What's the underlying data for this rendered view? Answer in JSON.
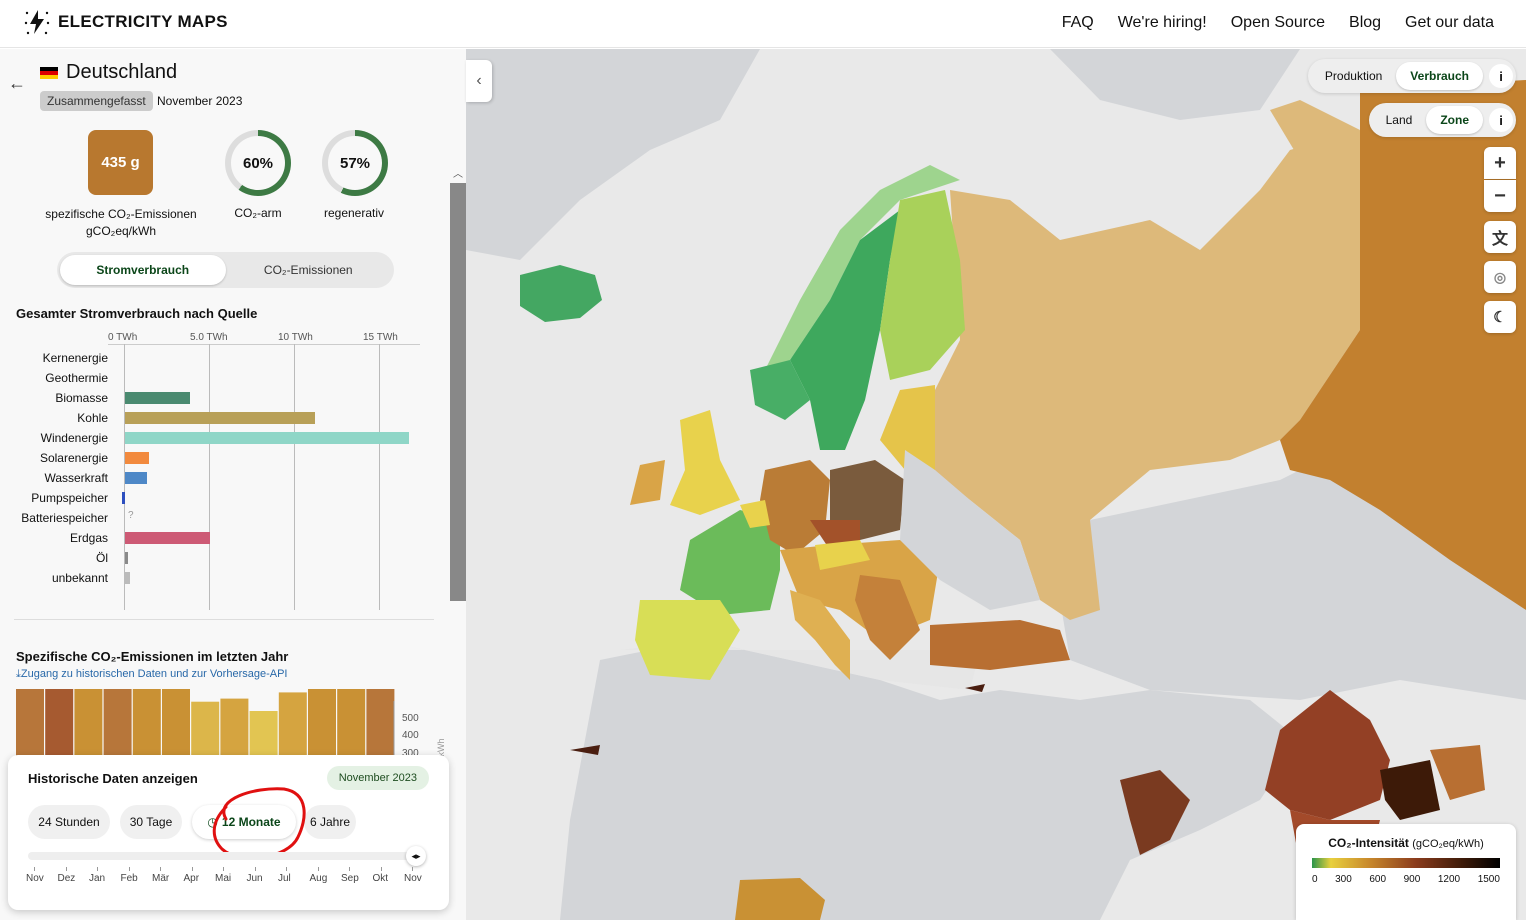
{
  "header": {
    "logo_text": "ELECTRICITY MAPS",
    "nav": [
      "FAQ",
      "We're hiring!",
      "Open Source",
      "Blog",
      "Get our data"
    ]
  },
  "zone": {
    "name": "Deutschland",
    "aggregation_tag": "Zusammengefasst",
    "period": "November 2023"
  },
  "metrics": {
    "carbon_intensity": {
      "value": "435 g",
      "label": "spezifische CO₂-Emissionen",
      "unit": "gCO₂eq/kWh"
    },
    "low_carbon": {
      "value": "60%",
      "label": "CO₂-arm",
      "fraction": 0.6
    },
    "renewable": {
      "value": "57%",
      "label": "regenerativ",
      "fraction": 0.57
    }
  },
  "toggle": {
    "options": [
      "Stromverbrauch",
      "CO₂-Emissionen"
    ],
    "active": "Stromverbrauch"
  },
  "production_chart": {
    "title": "Gesamter Stromverbrauch nach Quelle",
    "axis_ticks": [
      "0 TWh",
      "5.0 TWh",
      "10 TWh",
      "15 TWh"
    ],
    "unavailable_marker": "?"
  },
  "chart_data": [
    {
      "type": "bar",
      "title": "Gesamter Stromverbrauch nach Quelle",
      "orientation": "horizontal",
      "xlabel": "TWh",
      "xlim": [
        0,
        17.5
      ],
      "categories": [
        "Kernenergie",
        "Geothermie",
        "Biomasse",
        "Kohle",
        "Windenergie",
        "Solarenergie",
        "Wasserkraft",
        "Pumpspeicher",
        "Batteriespeicher",
        "Erdgas",
        "Öl",
        "unbekannt"
      ],
      "values": [
        0,
        0,
        3.8,
        11.2,
        16.7,
        1.4,
        1.3,
        -0.2,
        null,
        5.0,
        0.2,
        0.3
      ],
      "colors": [
        "#9aa5a0",
        "#a86e47",
        "#4a8a70",
        "#b8a058",
        "#8fd6c7",
        "#f28a3e",
        "#4e88c7",
        "#2d4fbf",
        "#bbb",
        "#cd5a75",
        "#8a8a8a",
        "#bbbbbb"
      ]
    },
    {
      "type": "bar",
      "title": "Spezifische CO₂-Emissionen im letzten Jahr",
      "ylabel": "g / kWh",
      "categories": [
        "Nov",
        "Dez",
        "Jan",
        "Feb",
        "Mär",
        "Apr",
        "Mai",
        "Jun",
        "Jul",
        "Aug",
        "Sep",
        "Okt",
        "Nov"
      ],
      "values": [
        435,
        490,
        395,
        460,
        380,
        380,
        330,
        340,
        300,
        360,
        385,
        375,
        435
      ],
      "y_ticks": [
        "500",
        "400",
        "300"
      ]
    }
  ],
  "emissions_section": {
    "title": "Spezifische CO₂-Emissionen im letzten Jahr",
    "link": "Zugang zu historischen Daten und zur Vorhersage-API",
    "ylabel": "g / kWh"
  },
  "history": {
    "title": "Historische Daten anzeigen",
    "selected_date": "November 2023",
    "ranges": [
      "24 Stunden",
      "30 Tage",
      "12 Monate",
      "6 Jahre"
    ],
    "active_range": "12 Monate",
    "timeline_labels": [
      "Nov",
      "Dez",
      "Jan",
      "Feb",
      "Mär",
      "Apr",
      "Mai",
      "Jun",
      "Jul",
      "Aug",
      "Sep",
      "Okt",
      "Nov"
    ]
  },
  "map_controls": {
    "mode": {
      "options": [
        "Produktion",
        "Verbrauch"
      ],
      "active": "Verbrauch",
      "info": "i"
    },
    "granularity": {
      "options": [
        "Land",
        "Zone"
      ],
      "active": "Zone",
      "info": "i"
    },
    "zoom_in": "+",
    "zoom_out": "−"
  },
  "legend": {
    "title": "CO₂-Intensität",
    "unit": "(gCO₂eq/kWh)",
    "ticks": [
      "0",
      "300",
      "600",
      "900",
      "1200",
      "1500"
    ]
  }
}
